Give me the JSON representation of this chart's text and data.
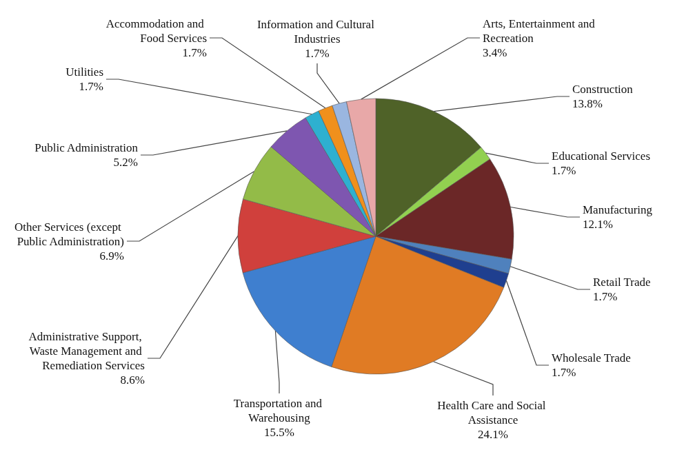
{
  "chart_data": {
    "type": "pie",
    "categories": [
      "Construction",
      "Educational Services",
      "Manufacturing",
      "Retail Trade",
      "Wholesale Trade",
      "Health Care and Social Assistance",
      "Transportation and Warehousing",
      "Administrative Support, Waste Management and Remediation Services",
      "Other Services (except Public Administration)",
      "Public Administration",
      "Utilities",
      "Accommodation and Food Services",
      "Information and Cultural Industries",
      "Arts, Entertainment and Recreation"
    ],
    "values": [
      13.8,
      1.7,
      12.1,
      1.7,
      1.7,
      24.1,
      15.5,
      8.6,
      6.9,
      5.2,
      1.7,
      1.7,
      1.7,
      3.4
    ],
    "value_labels": [
      "13.8%",
      "1.7%",
      "12.1%",
      "1.7%",
      "1.7%",
      "24.1%",
      "15.5%",
      "8.6%",
      "6.9%",
      "5.2%",
      "1.7%",
      "1.7%",
      "1.7%",
      "3.4%"
    ],
    "colors": [
      "#4f6228",
      "#92d050",
      "#6b2727",
      "#4f81bd",
      "#1f3f8f",
      "#e07b24",
      "#3f7fcf",
      "#d0403c",
      "#93bb48",
      "#7e56b0",
      "#2eb0d0",
      "#f0901c",
      "#9ab6e0",
      "#e8a8a8"
    ],
    "legend": false
  }
}
